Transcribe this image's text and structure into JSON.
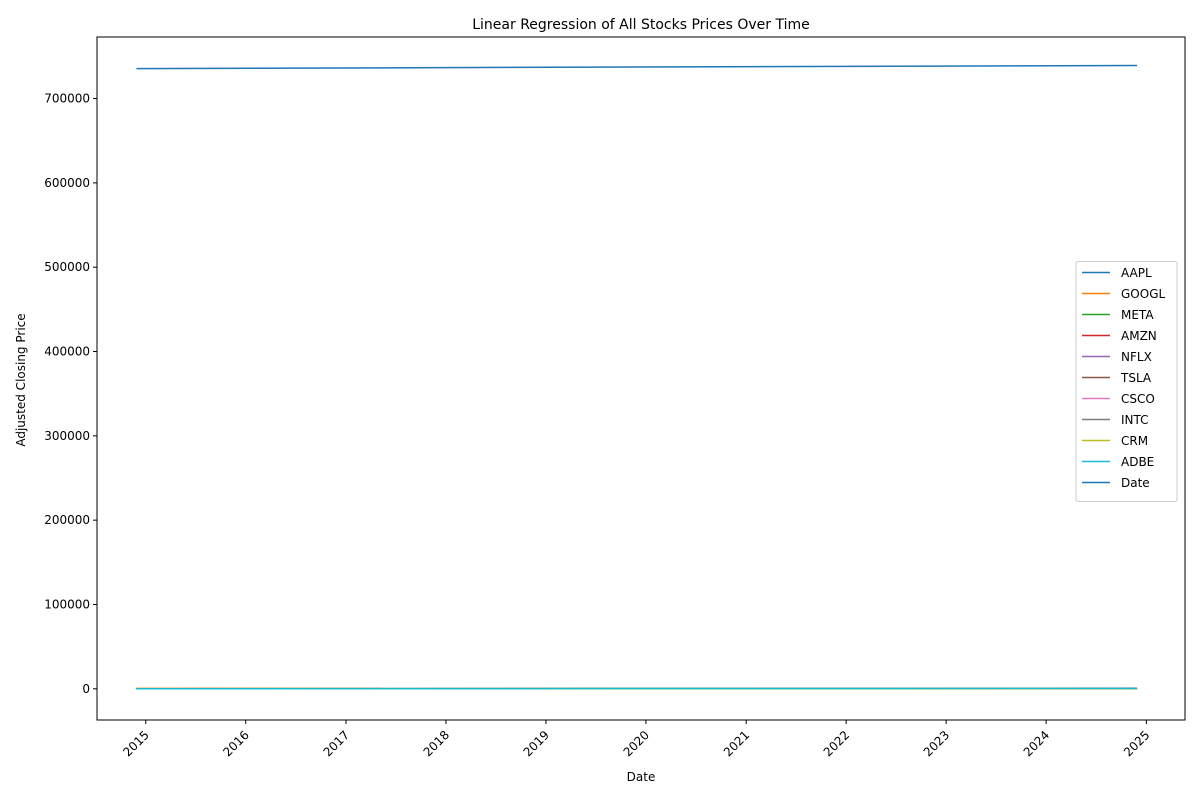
{
  "chart_data": {
    "type": "line",
    "title": "Linear Regression of All Stocks Prices Over Time",
    "xlabel": "Date",
    "ylabel": "Adjusted Closing Price",
    "x_ticks": [
      "2015",
      "2016",
      "2017",
      "2018",
      "2019",
      "2020",
      "2021",
      "2022",
      "2023",
      "2024",
      "2025"
    ],
    "y_ticks": [
      0,
      100000,
      200000,
      300000,
      400000,
      500000,
      600000,
      700000
    ],
    "x_range": [
      "2014-11-28",
      "2024-11-28"
    ],
    "xlim": [
      "2014-07-07",
      "2025-05-22"
    ],
    "ylim": [
      -37000,
      773000
    ],
    "legend_position": "center-right",
    "grid": false,
    "series": [
      {
        "name": "AAPL",
        "color": "#1f77b4",
        "values": [
          80,
          240
        ]
      },
      {
        "name": "GOOGL",
        "color": "#ff7f0e",
        "values": [
          500,
          190
        ]
      },
      {
        "name": "META",
        "color": "#2ca02c",
        "values": [
          80,
          550
        ]
      },
      {
        "name": "AMZN",
        "color": "#d62728",
        "values": [
          20,
          200
        ]
      },
      {
        "name": "NFLX",
        "color": "#9467bd",
        "values": [
          40,
          800
        ]
      },
      {
        "name": "TSLA",
        "color": "#8c564b",
        "values": [
          15,
          320
        ]
      },
      {
        "name": "CSCO",
        "color": "#e377c2",
        "values": [
          20,
          55
        ]
      },
      {
        "name": "INTC",
        "color": "#7f7f7f",
        "values": [
          30,
          40
        ]
      },
      {
        "name": "CRM",
        "color": "#bcbd22",
        "values": [
          60,
          300
        ]
      },
      {
        "name": "ADBE",
        "color": "#17becf",
        "values": [
          70,
          500
        ]
      },
      {
        "name": "Date",
        "color": "#1f77b4",
        "values": [
          735565,
          739218
        ]
      }
    ]
  }
}
